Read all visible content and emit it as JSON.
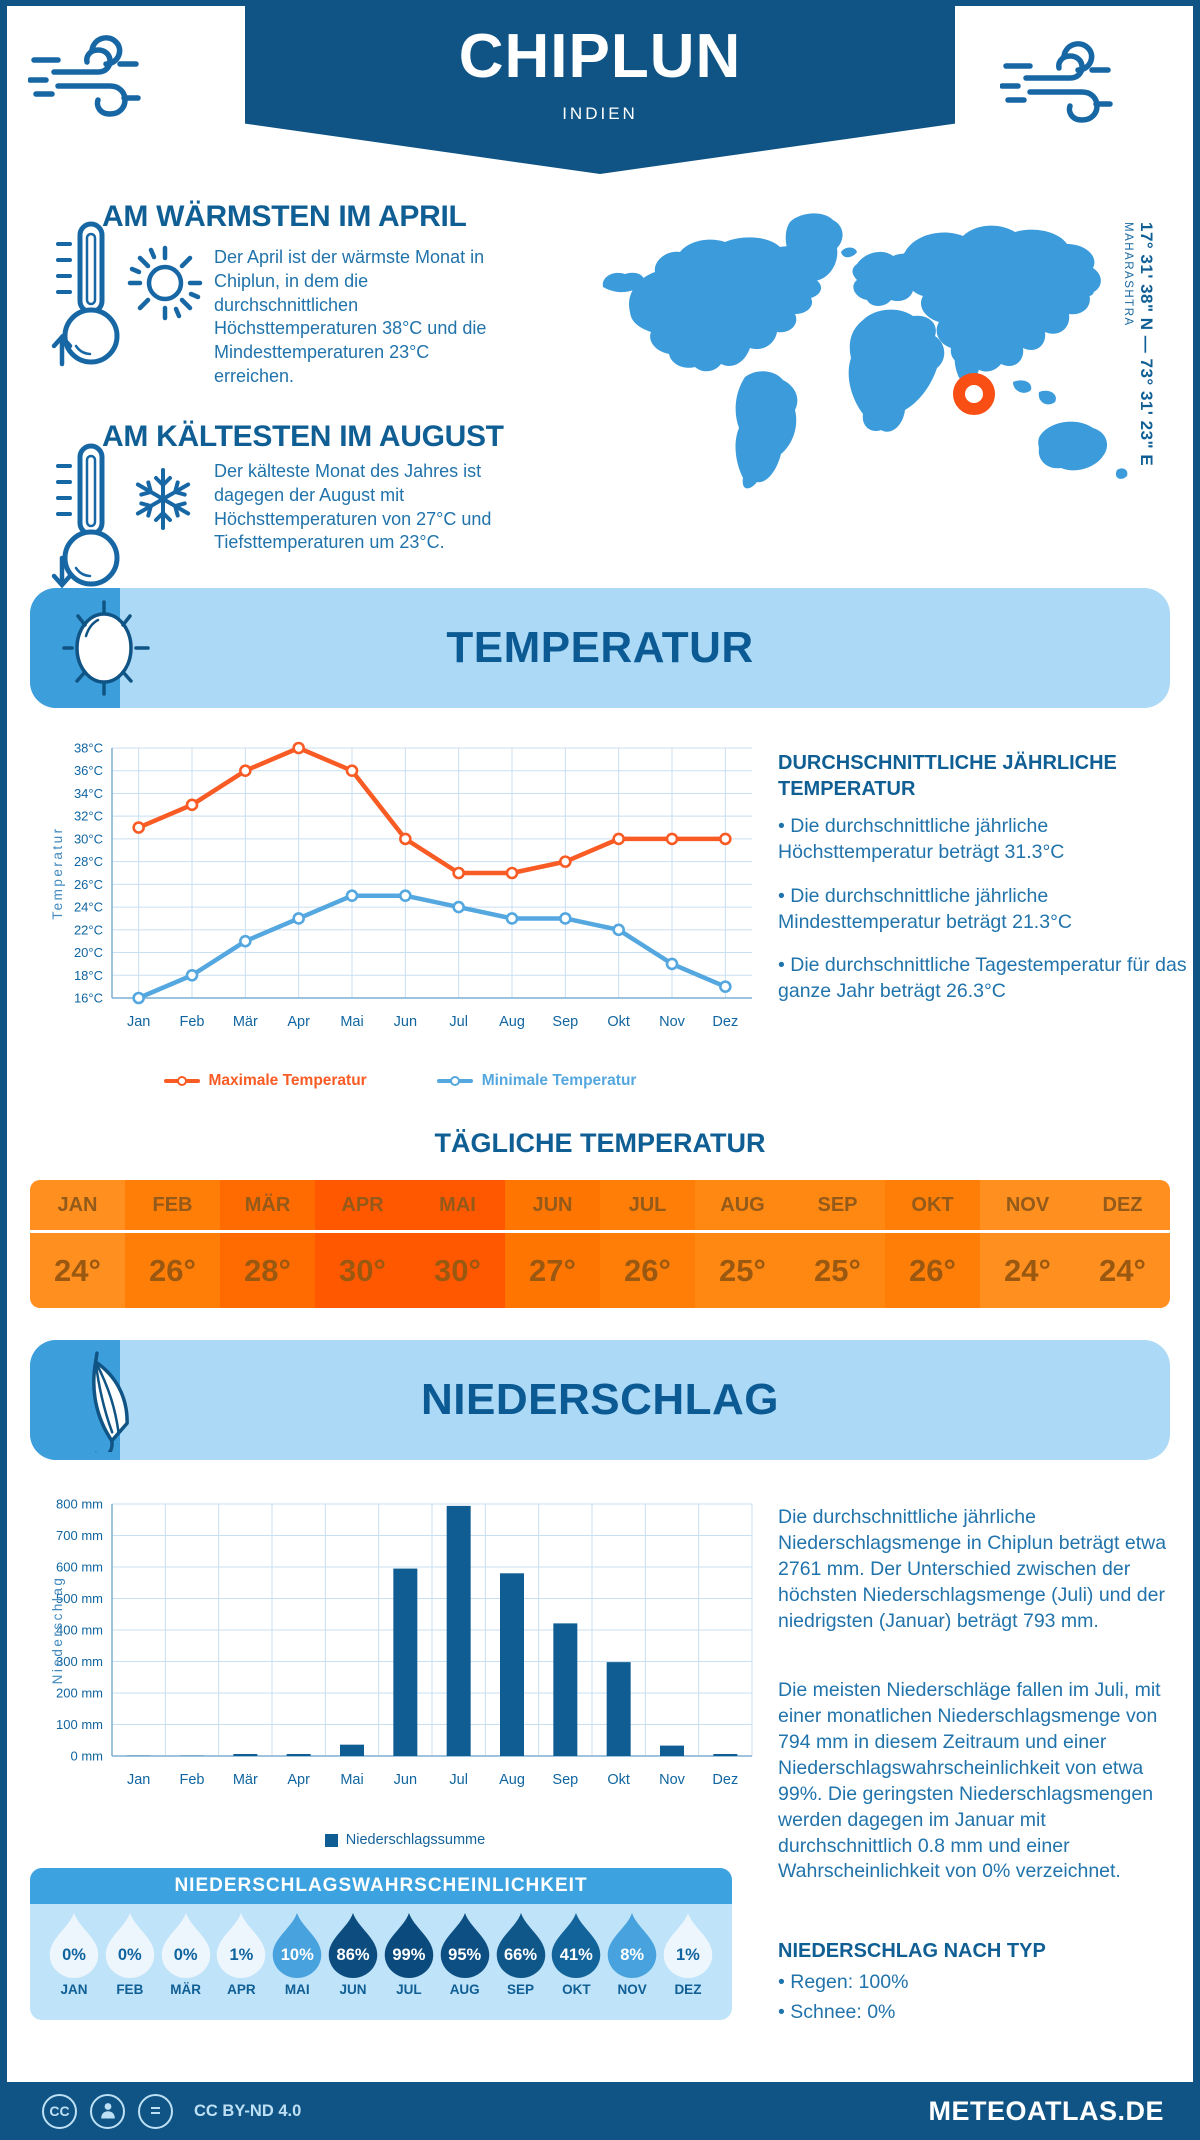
{
  "header": {
    "title": "CHIPLUN",
    "subtitle": "INDIEN"
  },
  "highlights": {
    "warm": {
      "heading": "AM WÄRMSTEN IM APRIL",
      "text": "Der April ist der wärmste Monat in Chiplun, in dem die durchschnittlichen Höchsttemperaturen 38°C und die Mindesttemperaturen 23°C erreichen."
    },
    "cold": {
      "heading": "AM KÄLTESTEN IM AUGUST",
      "text": "Der kälteste Monat des Jahres ist dagegen der August mit Höchsttemperaturen von 27°C und Tiefsttemperaturen um 23°C."
    }
  },
  "map": {
    "coordinates": "17° 31' 38\" N — 73° 31' 23\" E",
    "region": "MAHARASHTRA",
    "land_color": "#3B9BDB",
    "marker_color": "#FA4F14"
  },
  "temperature": {
    "banner": "TEMPERATUR",
    "stats_heading": "DURCHSCHNITTLICHE JÄHRLICHE TEMPERATUR",
    "stats": [
      "• Die durchschnittliche jährliche Höchsttemperatur beträgt 31.3°C",
      "• Die durchschnittliche jährliche Mindesttemperatur beträgt 21.3°C",
      "• Die durchschnittliche Tagestemperatur für das ganze Jahr beträgt 26.3°C"
    ]
  },
  "daily": {
    "heading": "TÄGLICHE TEMPERATUR",
    "columns": [
      {
        "month": "JAN",
        "value": "24°",
        "bg": "#FF901F"
      },
      {
        "month": "FEB",
        "value": "26°",
        "bg": "#FF7E08"
      },
      {
        "month": "MÄR",
        "value": "28°",
        "bg": "#FF6B00"
      },
      {
        "month": "APR",
        "value": "30°",
        "bg": "#FF5800"
      },
      {
        "month": "MAI",
        "value": "30°",
        "bg": "#FF5800"
      },
      {
        "month": "JUN",
        "value": "27°",
        "bg": "#FF7502"
      },
      {
        "month": "JUL",
        "value": "26°",
        "bg": "#FF7E08"
      },
      {
        "month": "AUG",
        "value": "25°",
        "bg": "#FF8812"
      },
      {
        "month": "SEP",
        "value": "25°",
        "bg": "#FF8812"
      },
      {
        "month": "OKT",
        "value": "26°",
        "bg": "#FF7E08"
      },
      {
        "month": "NOV",
        "value": "24°",
        "bg": "#FF901F"
      },
      {
        "month": "DEZ",
        "value": "24°",
        "bg": "#FF901F"
      }
    ]
  },
  "precipitation": {
    "banner": "NIEDERSCHLAG",
    "paragraphs": [
      "Die durchschnittliche jährliche Niederschlagsmenge in Chiplun beträgt etwa 2761 mm. Der Unterschied zwischen der höchsten Niederschlagsmenge (Juli) und der niedrigsten (Januar) beträgt 793 mm.",
      "Die meisten Niederschläge fallen im Juli, mit einer monatlichen Niederschlagsmenge von 794 mm in diesem Zeitraum und einer Niederschlagswahrscheinlichkeit von etwa 99%. Die geringsten Niederschlagsmengen werden dagegen im Januar mit durchschnittlich 0.8 mm und einer Wahrscheinlichkeit von 0% verzeichnet."
    ],
    "type_heading": "NIEDERSCHLAG NACH TYP",
    "type_stats": [
      "• Regen: 100%",
      "• Schnee: 0%"
    ]
  },
  "probability": {
    "heading": "NIEDERSCHLAGSWAHRSCHEINLICHKEIT",
    "items": [
      {
        "month": "JAN",
        "value": "0%",
        "fill": "#EDF6FD",
        "text_color": "#1065A0"
      },
      {
        "month": "FEB",
        "value": "0%",
        "fill": "#EDF6FD",
        "text_color": "#1065A0"
      },
      {
        "month": "MÄR",
        "value": "0%",
        "fill": "#EDF6FD",
        "text_color": "#1065A0"
      },
      {
        "month": "APR",
        "value": "1%",
        "fill": "#EDF6FD",
        "text_color": "#1065A0"
      },
      {
        "month": "MAI",
        "value": "10%",
        "fill": "#47A2DD",
        "text_color": "#FFFFFF"
      },
      {
        "month": "JUN",
        "value": "86%",
        "fill": "#0C4C7F",
        "text_color": "#FFFFFF"
      },
      {
        "month": "JUL",
        "value": "99%",
        "fill": "#0B4A7C",
        "text_color": "#FFFFFF"
      },
      {
        "month": "AUG",
        "value": "95%",
        "fill": "#0D4F82",
        "text_color": "#FFFFFF"
      },
      {
        "month": "SEP",
        "value": "66%",
        "fill": "#0F5689",
        "text_color": "#FFFFFF"
      },
      {
        "month": "OKT",
        "value": "41%",
        "fill": "#14649C",
        "text_color": "#FFFFFF"
      },
      {
        "month": "NOV",
        "value": "8%",
        "fill": "#47A2DD",
        "text_color": "#FFFFFF"
      },
      {
        "month": "DEZ",
        "value": "1%",
        "fill": "#EDF6FD",
        "text_color": "#1065A0"
      }
    ]
  },
  "footer": {
    "license": "CC BY-ND 4.0",
    "site": "METEOATLAS.DE"
  },
  "chart_data": [
    {
      "name": "monthly-temperature",
      "type": "line",
      "x": [
        "Jan",
        "Feb",
        "Mär",
        "Apr",
        "Mai",
        "Jun",
        "Jul",
        "Aug",
        "Sep",
        "Okt",
        "Nov",
        "Dez"
      ],
      "series": [
        {
          "name": "Maximale Temperatur",
          "color": "#F95B25",
          "values": [
            31,
            33,
            36,
            38,
            36,
            30,
            27,
            27,
            28,
            30,
            30,
            30
          ]
        },
        {
          "name": "Minimale Temperatur",
          "color": "#54A7DF",
          "values": [
            16,
            18,
            21,
            23,
            25,
            25,
            24,
            23,
            23,
            22,
            19,
            17
          ]
        }
      ],
      "ylabel": "Temperatur",
      "ylim": [
        16,
        38
      ],
      "ytick_step": 2,
      "yunit": "°C",
      "grid": true,
      "legend_position": "bottom"
    },
    {
      "name": "monthly-precipitation",
      "type": "bar",
      "x": [
        "Jan",
        "Feb",
        "Mär",
        "Apr",
        "Mai",
        "Jun",
        "Jul",
        "Aug",
        "Sep",
        "Okt",
        "Nov",
        "Dez"
      ],
      "values": [
        0.8,
        0.8,
        3,
        3,
        36,
        595,
        794,
        580,
        421,
        298,
        33,
        3
      ],
      "bar_color": "#0F5D93",
      "ylabel": "Niederschlag",
      "ylim": [
        0,
        800
      ],
      "ytick_step": 100,
      "yunit": " mm",
      "grid": true,
      "legend": "Niederschlagssumme",
      "legend_position": "bottom"
    }
  ]
}
